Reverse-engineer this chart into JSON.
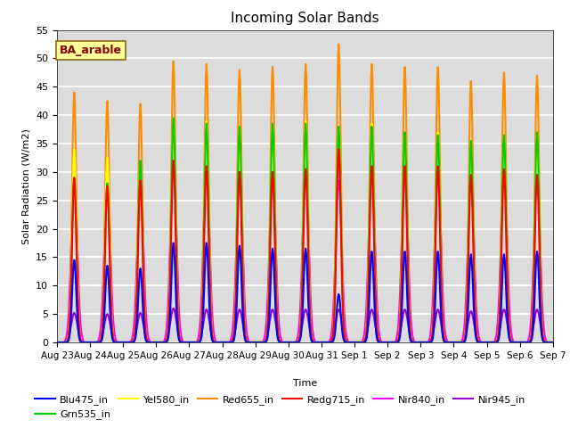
{
  "title": "Incoming Solar Bands",
  "xlabel": "Time",
  "ylabel": "Solar Radiation (W/m2)",
  "ylim": [
    0,
    55
  ],
  "yticks": [
    0,
    5,
    10,
    15,
    20,
    25,
    30,
    35,
    40,
    45,
    50,
    55
  ],
  "annotation_text": "BA_arable",
  "annotation_color": "#8B0000",
  "annotation_bg": "#FFFF99",
  "bg_color": "#DCDCDC",
  "grid_color": "white",
  "series": [
    {
      "name": "Blu475_in",
      "color": "#0000FF",
      "lw": 1.5
    },
    {
      "name": "Grn535_in",
      "color": "#00CC00",
      "lw": 1.5
    },
    {
      "name": "Yel580_in",
      "color": "#FFFF00",
      "lw": 1.5
    },
    {
      "name": "Red655_in",
      "color": "#FF8C00",
      "lw": 1.5
    },
    {
      "name": "Redg715_in",
      "color": "#FF0000",
      "lw": 1.5
    },
    {
      "name": "Nir840_in",
      "color": "#FF00FF",
      "lw": 1.5
    },
    {
      "name": "Nir945_in",
      "color": "#9900CC",
      "lw": 1.5
    }
  ],
  "peak_blue": [
    14.5,
    13.5,
    13.0,
    17.5,
    17.5,
    17.0,
    16.5,
    16.5,
    8.5,
    16.0,
    16.0,
    16.0,
    15.5,
    15.5,
    16.0
  ],
  "peak_red655": [
    44.0,
    42.5,
    42.0,
    49.5,
    49.0,
    48.0,
    48.5,
    49.0,
    52.5,
    49.0,
    48.5,
    48.5,
    46.0,
    47.5,
    47.0
  ],
  "peak_redg": [
    29.0,
    27.5,
    28.5,
    32.0,
    31.0,
    30.0,
    30.0,
    30.5,
    34.0,
    31.0,
    31.0,
    31.0,
    29.5,
    30.5,
    29.5
  ],
  "peak_yel": [
    34.0,
    32.5,
    32.0,
    39.5,
    39.0,
    38.0,
    38.5,
    39.0,
    38.0,
    38.5,
    37.0,
    37.0,
    35.5,
    36.5,
    37.0
  ],
  "peak_grn": [
    29.0,
    28.0,
    32.0,
    39.5,
    38.5,
    38.0,
    38.5,
    38.5,
    38.0,
    38.0,
    37.0,
    36.5,
    35.5,
    36.5,
    37.0
  ],
  "peak_nir840": [
    29.0,
    27.5,
    28.5,
    32.0,
    31.0,
    30.0,
    30.0,
    30.5,
    28.5,
    31.0,
    31.0,
    31.0,
    29.5,
    30.5,
    29.5
  ],
  "peak_nir945": [
    5.2,
    5.0,
    5.2,
    6.0,
    5.8,
    5.8,
    5.8,
    5.8,
    5.8,
    5.8,
    5.8,
    5.8,
    5.5,
    5.8,
    5.8
  ]
}
